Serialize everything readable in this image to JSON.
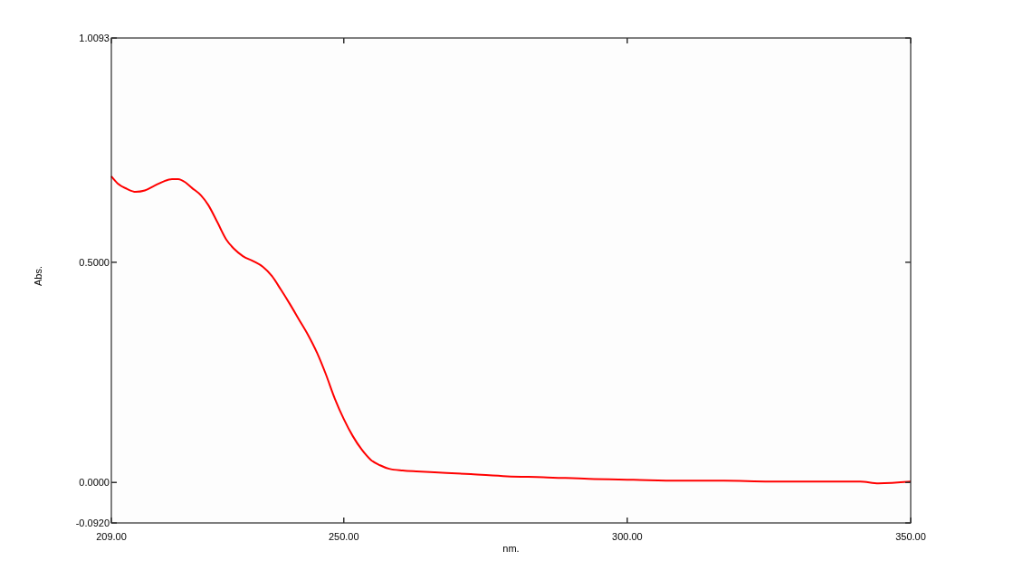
{
  "chart_data": {
    "type": "line",
    "xlabel": "nm.",
    "ylabel": "Abs.",
    "xlim": [
      209,
      350
    ],
    "ylim": [
      -0.092,
      1.0093
    ],
    "xticks": [
      {
        "value": 209,
        "label": "209.00"
      },
      {
        "value": 250,
        "label": "250.00"
      },
      {
        "value": 300,
        "label": "300.00"
      },
      {
        "value": 350,
        "label": "350.00"
      }
    ],
    "yticks": [
      {
        "value": -0.092,
        "label": "-0.0920"
      },
      {
        "value": 0,
        "label": "0.0000"
      },
      {
        "value": 0.5,
        "label": "0.5000"
      },
      {
        "value": 1.0093,
        "label": "1.0093"
      }
    ],
    "marker": "none",
    "line_style": "solid",
    "series": [
      {
        "color": "#ff0000",
        "x": [
          209,
          210.1,
          211.7,
          213.3,
          214.9,
          216.5,
          218.1,
          219.7,
          220.8,
          222.1,
          223.2,
          224.8,
          226.1,
          227.7,
          229.3,
          230.6,
          232.2,
          234.1,
          235.7,
          237.3,
          238.9,
          240.5,
          242.1,
          243.7,
          245.3,
          246.8,
          248.4,
          250.0,
          251.6,
          253.2,
          254.8,
          256.4,
          258.0,
          260.4,
          262.8,
          266.0,
          272.4,
          278.8,
          285.2,
          293.2,
          301.1,
          309.1,
          317.1,
          325.1,
          333.1,
          341.1,
          344.3,
          350
        ],
        "values": [
          0.695,
          0.679,
          0.667,
          0.66,
          0.663,
          0.673,
          0.683,
          0.689,
          0.689,
          0.681,
          0.669,
          0.652,
          0.63,
          0.591,
          0.551,
          0.531,
          0.514,
          0.502,
          0.49,
          0.469,
          0.438,
          0.405,
          0.37,
          0.335,
          0.294,
          0.247,
          0.191,
          0.144,
          0.105,
          0.074,
          0.051,
          0.039,
          0.031,
          0.027,
          0.025,
          0.023,
          0.019,
          0.014,
          0.012,
          0.008,
          0.006,
          0.004,
          0.004,
          0.002,
          0.002,
          0.002,
          -0.002,
          0.002
        ]
      }
    ]
  }
}
